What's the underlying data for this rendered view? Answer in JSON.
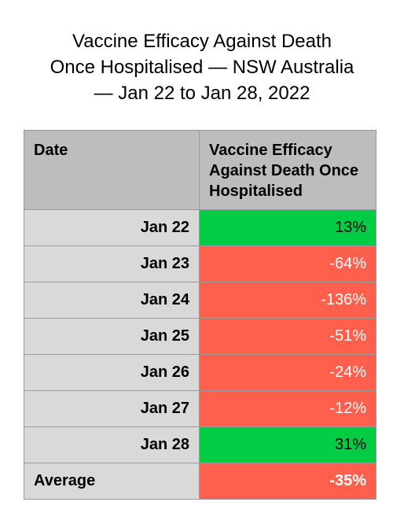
{
  "title": {
    "line1": "Vaccine Efficacy Against Death",
    "line2": "Once Hospitalised — NSW Australia",
    "line3": "— Jan 22 to Jan 28, 2022"
  },
  "colors": {
    "positive": "#00cc44",
    "negative": "#ff5f4d",
    "header_bg": "#bdbdbd",
    "label_bg": "#d9d9d9"
  },
  "chart_data": {
    "type": "table",
    "columns": [
      "Date",
      "Vaccine Efficacy Against Death Once Hospitalised"
    ],
    "rows": [
      {
        "date": "Jan 22",
        "display": "13%",
        "value": 13
      },
      {
        "date": "Jan 23",
        "display": "-64%",
        "value": -64
      },
      {
        "date": "Jan 24",
        "display": "-136%",
        "value": -136
      },
      {
        "date": "Jan 25",
        "display": "-51%",
        "value": -51
      },
      {
        "date": "Jan 26",
        "display": "-24%",
        "value": -24
      },
      {
        "date": "Jan 27",
        "display": "-12%",
        "value": -12
      },
      {
        "date": "Jan 28",
        "display": "31%",
        "value": 31
      }
    ],
    "average": {
      "label": "Average",
      "display": "-35%",
      "value": -35
    }
  }
}
